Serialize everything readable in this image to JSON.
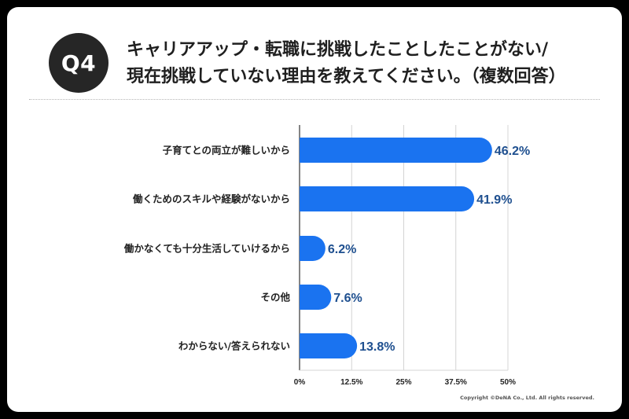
{
  "badge": {
    "label": "Q4"
  },
  "title": {
    "line1": "キャリアアップ・転職に挑戦したことしたことがない/",
    "line2": "現在挑戦していない理由を教えてください。（複数回答）"
  },
  "footer": {
    "copyright": "Copyright ©DeNA Co., Ltd. All rights reserved."
  },
  "colors": {
    "bar": "#1a73f0",
    "value_label": "#1e4f8f",
    "badge": "#262626"
  },
  "chart_data": {
    "type": "bar",
    "orientation": "horizontal",
    "categories": [
      "子育てとの両立が難しいから",
      "働くためのスキルや経験がないから",
      "働かなくても十分生活していけるから",
      "その他",
      "わからない/答えられない"
    ],
    "values": [
      46.2,
      41.9,
      6.2,
      7.6,
      13.8
    ],
    "value_labels": [
      "46.2%",
      "41.9%",
      "6.2%",
      "7.6%",
      "13.8%"
    ],
    "xlim": [
      0,
      50
    ],
    "ticks": [
      0,
      12.5,
      25,
      37.5,
      50
    ],
    "tick_labels": [
      "0%",
      "12.5%",
      "25%",
      "37.5%",
      "50%"
    ],
    "grid": true,
    "title": "",
    "xlabel": "",
    "ylabel": ""
  }
}
